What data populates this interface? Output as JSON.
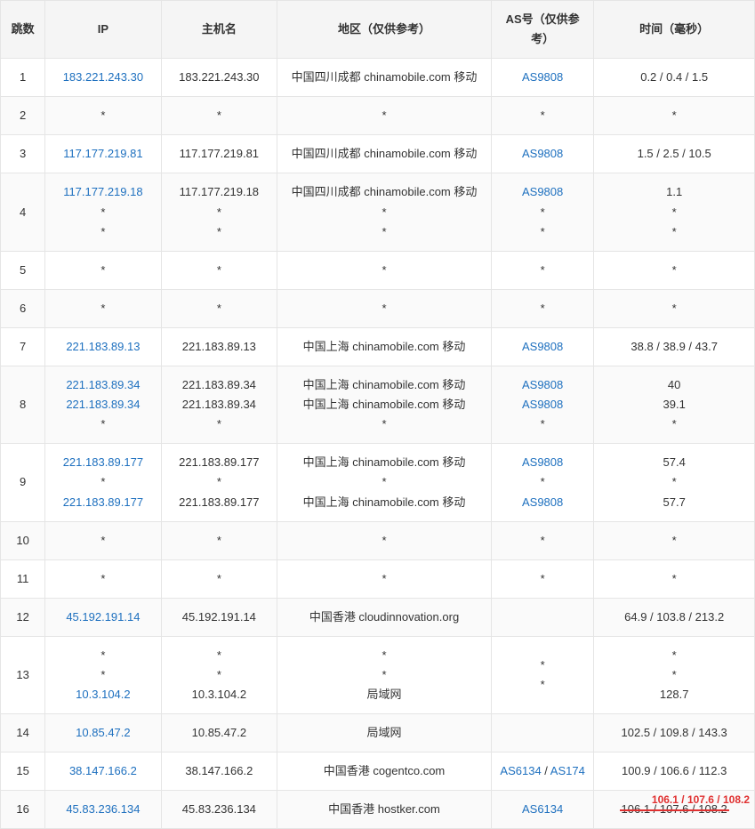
{
  "columns": {
    "hop": "跳数",
    "ip": "IP",
    "host": "主机名",
    "loc": "地区（仅供参考）",
    "as": "AS号（仅供参考）",
    "time": "时间（毫秒）"
  },
  "rows": [
    {
      "hop": "1",
      "lines": [
        {
          "ip": "183.221.243.30",
          "ip_link": true,
          "host": "183.221.243.30",
          "loc": "中国四川成都 chinamobile.com 移动",
          "as": "AS9808",
          "as_link": true,
          "time": "0.2 / 0.4 / 1.5"
        }
      ]
    },
    {
      "hop": "2",
      "lines": [
        {
          "ip": "*",
          "host": "*",
          "loc": "*",
          "as": "*",
          "time": "*"
        }
      ]
    },
    {
      "hop": "3",
      "lines": [
        {
          "ip": "117.177.219.81",
          "ip_link": true,
          "host": "117.177.219.81",
          "loc": "中国四川成都 chinamobile.com 移动",
          "as": "AS9808",
          "as_link": true,
          "time": "1.5 / 2.5 / 10.5"
        }
      ]
    },
    {
      "hop": "4",
      "lines": [
        {
          "ip": "117.177.219.18",
          "ip_link": true,
          "host": "117.177.219.18",
          "loc": "中国四川成都 chinamobile.com 移动",
          "as": "AS9808",
          "as_link": true,
          "time": "1.1"
        },
        {
          "ip": "*",
          "host": "*",
          "loc": "*",
          "as": "*",
          "time": "*"
        },
        {
          "ip": "*",
          "host": "*",
          "loc": "*",
          "as": "*",
          "time": "*"
        }
      ]
    },
    {
      "hop": "5",
      "lines": [
        {
          "ip": "*",
          "host": "*",
          "loc": "*",
          "as": "*",
          "time": "*"
        }
      ]
    },
    {
      "hop": "6",
      "lines": [
        {
          "ip": "*",
          "host": "*",
          "loc": "*",
          "as": "*",
          "time": "*"
        }
      ]
    },
    {
      "hop": "7",
      "lines": [
        {
          "ip": "221.183.89.13",
          "ip_link": true,
          "host": "221.183.89.13",
          "loc": "中国上海 chinamobile.com 移动",
          "as": "AS9808",
          "as_link": true,
          "time": "38.8 / 38.9 / 43.7"
        }
      ]
    },
    {
      "hop": "8",
      "lines": [
        {
          "ip": "221.183.89.34",
          "ip_link": true,
          "host": "221.183.89.34",
          "loc": "中国上海 chinamobile.com 移动",
          "as": "AS9808",
          "as_link": true,
          "time": "40"
        },
        {
          "ip": "221.183.89.34",
          "ip_link": true,
          "host": "221.183.89.34",
          "loc": "中国上海 chinamobile.com 移动",
          "as": "AS9808",
          "as_link": true,
          "time": "39.1"
        },
        {
          "ip": "*",
          "host": "*",
          "loc": "*",
          "as": "*",
          "time": "*"
        }
      ]
    },
    {
      "hop": "9",
      "lines": [
        {
          "ip": "221.183.89.177",
          "ip_link": true,
          "host": "221.183.89.177",
          "loc": "中国上海 chinamobile.com 移动",
          "as": "AS9808",
          "as_link": true,
          "time": "57.4"
        },
        {
          "ip": "*",
          "host": "*",
          "loc": "*",
          "as": "*",
          "time": "*"
        },
        {
          "ip": "221.183.89.177",
          "ip_link": true,
          "host": "221.183.89.177",
          "loc": "中国上海 chinamobile.com 移动",
          "as": "AS9808",
          "as_link": true,
          "time": "57.7"
        }
      ]
    },
    {
      "hop": "10",
      "lines": [
        {
          "ip": "*",
          "host": "*",
          "loc": "*",
          "as": "*",
          "time": "*"
        }
      ]
    },
    {
      "hop": "11",
      "lines": [
        {
          "ip": "*",
          "host": "*",
          "loc": "*",
          "as": "*",
          "time": "*"
        }
      ]
    },
    {
      "hop": "12",
      "lines": [
        {
          "ip": "45.192.191.14",
          "ip_link": true,
          "host": "45.192.191.14",
          "loc": "中国香港 cloudinnovation.org",
          "as": "",
          "time": "64.9 / 103.8 / 213.2"
        }
      ]
    },
    {
      "hop": "13",
      "lines": [
        {
          "ip": "*",
          "host": "*",
          "loc": "*",
          "as": "*",
          "time": "*"
        },
        {
          "ip": "*",
          "host": "*",
          "loc": "*",
          "as": "*",
          "time": "*"
        },
        {
          "ip": "10.3.104.2",
          "ip_link": true,
          "host": "10.3.104.2",
          "loc": "局域网",
          "as": "",
          "time": "128.7"
        }
      ]
    },
    {
      "hop": "14",
      "lines": [
        {
          "ip": "10.85.47.2",
          "ip_link": true,
          "host": "10.85.47.2",
          "loc": "局域网",
          "as": "",
          "time": "102.5 / 109.8 / 143.3"
        }
      ]
    },
    {
      "hop": "15",
      "lines": [
        {
          "ip": "38.147.166.2",
          "ip_link": true,
          "host": "38.147.166.2",
          "loc": "中国香港 cogentco.com",
          "as_parts": [
            "AS6134",
            " / ",
            "AS174"
          ],
          "as_link": true,
          "time": "100.9 / 106.6 / 112.3"
        }
      ]
    },
    {
      "hop": "16",
      "lines": [
        {
          "ip": "45.83.236.134",
          "ip_link": true,
          "host": "45.83.236.134",
          "loc": "中国香港 hostker.com",
          "as": "AS6134",
          "as_link": true,
          "time": "106.1 / 107.6 / 108.2",
          "time_strike": true,
          "overlay": "106.1 / 107.6 / 108.2"
        }
      ]
    }
  ],
  "colors": {
    "link": "#1e70bf",
    "border": "#e5e5e5",
    "header_bg": "#f5f5f5",
    "strike": "#e03030"
  }
}
